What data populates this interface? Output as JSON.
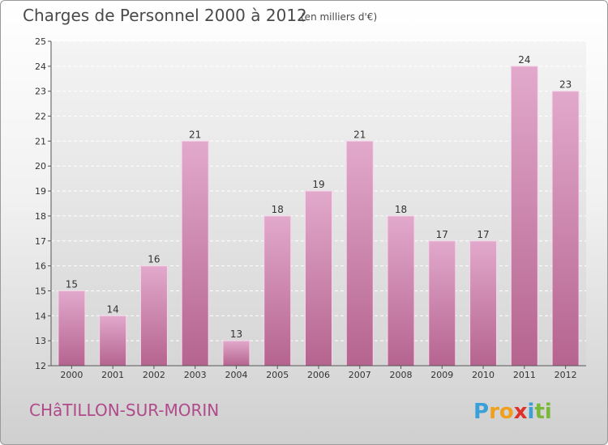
{
  "chart_data": {
    "type": "bar",
    "title": "Charges de Personnel 2000 à 2012",
    "subtitle": "(en milliers d'€)",
    "categories": [
      "2000",
      "2001",
      "2002",
      "2003",
      "2004",
      "2005",
      "2006",
      "2007",
      "2008",
      "2009",
      "2010",
      "2011",
      "2012"
    ],
    "values": [
      15,
      14,
      16,
      21,
      13,
      18,
      19,
      21,
      18,
      17,
      17,
      24,
      23
    ],
    "ylim": [
      12,
      25
    ],
    "yticks": [
      12,
      13,
      14,
      15,
      16,
      17,
      18,
      19,
      20,
      21,
      22,
      23,
      24,
      25
    ],
    "grid": true,
    "bar_color": "#c77aa7",
    "bar_color_light": "#e2a9cc"
  },
  "footer": {
    "commune": "CHâTILLON-SUR-MORIN",
    "logo_letters": [
      {
        "ch": "P",
        "color": "#3aa0d8"
      },
      {
        "ch": "r",
        "color": "#f0a020"
      },
      {
        "ch": "o",
        "color": "#f0a020"
      },
      {
        "ch": "x",
        "color": "#e0302a"
      },
      {
        "ch": "i",
        "color": "#3aa0d8"
      },
      {
        "ch": "t",
        "color": "#7ab83a"
      },
      {
        "ch": "i",
        "color": "#7ab83a"
      }
    ]
  }
}
